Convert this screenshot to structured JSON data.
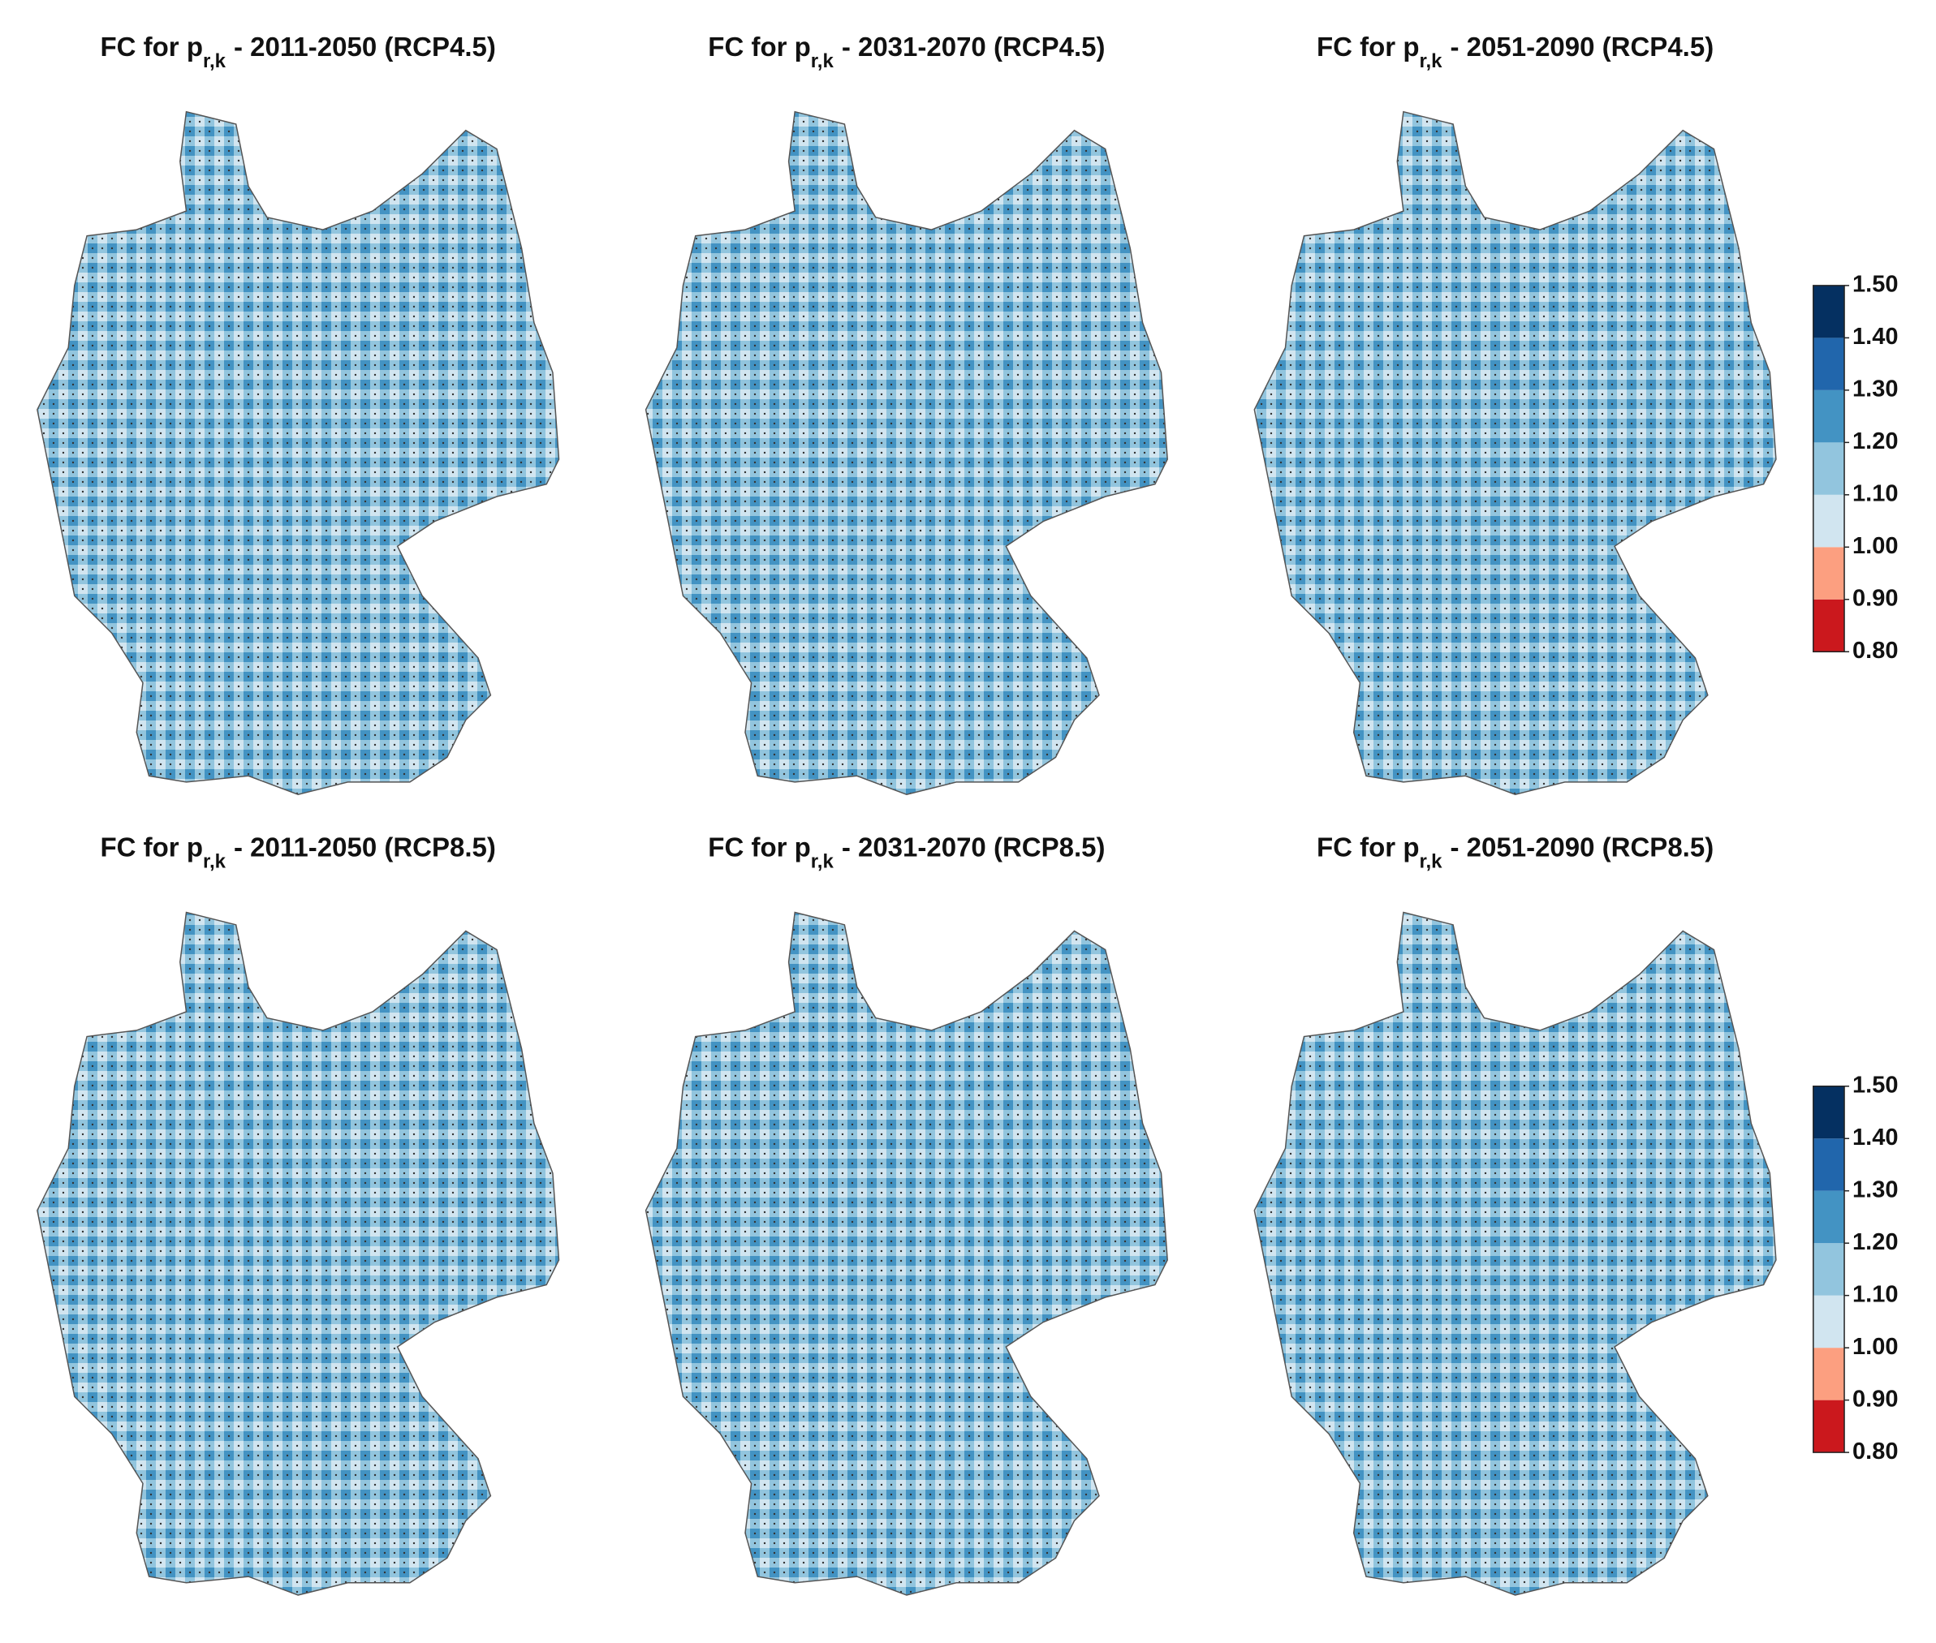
{
  "panels": [
    {
      "title": {
        "text": "FC for p",
        "subscript": "r,k",
        "rest": "- 2011-2050 (RCP4.5)"
      }
    },
    {
      "title": {
        "text": "FC for p",
        "subscript": "r,k",
        "rest": "- 2031-2070 (RCP4.5)"
      }
    },
    {
      "title": {
        "text": "FC for p",
        "subscript": "r,k",
        "rest": "- 2051-2090 (RCP4.5)"
      }
    },
    {
      "title": {
        "text": "FC for p",
        "subscript": "r,k",
        "rest": "- 2011-2050 (RCP8.5)"
      }
    },
    {
      "title": {
        "text": "FC for p",
        "subscript": "r,k",
        "rest": "- 2031-2070 (RCP8.5)"
      }
    },
    {
      "title": {
        "text": "FC for p",
        "subscript": "r,k",
        "rest": "- 2051-2090 (RCP8.5)"
      }
    }
  ],
  "colorbars": [
    {
      "ticks": [
        {
          "value": 0.8,
          "label": "0.80"
        },
        {
          "value": 0.9,
          "label": "0.90"
        },
        {
          "value": 1.0,
          "label": "1.00"
        },
        {
          "value": 1.1,
          "label": "1.10"
        },
        {
          "value": 1.2,
          "label": "1.20"
        },
        {
          "value": 1.3,
          "label": "1.30"
        },
        {
          "value": 1.4,
          "label": "1.40"
        },
        {
          "value": 1.5,
          "label": "1.50"
        }
      ],
      "colors": [
        "#cb181d",
        "#fc9f80",
        "#d1e5f0",
        "#92c5de",
        "#4393c3",
        "#2166ac",
        "#053061"
      ]
    },
    {
      "ticks": [
        {
          "value": 0.8,
          "label": "0.80"
        },
        {
          "value": 0.9,
          "label": "0.90"
        },
        {
          "value": 1.0,
          "label": "1.00"
        },
        {
          "value": 1.1,
          "label": "1.10"
        },
        {
          "value": 1.2,
          "label": "1.20"
        },
        {
          "value": 1.3,
          "label": "1.30"
        },
        {
          "value": 1.4,
          "label": "1.40"
        },
        {
          "value": 1.5,
          "label": "1.50"
        }
      ],
      "colors": [
        "#cb181d",
        "#fc9f80",
        "#d1e5f0",
        "#92c5de",
        "#4393c3",
        "#2166ac",
        "#053061"
      ]
    }
  ]
}
